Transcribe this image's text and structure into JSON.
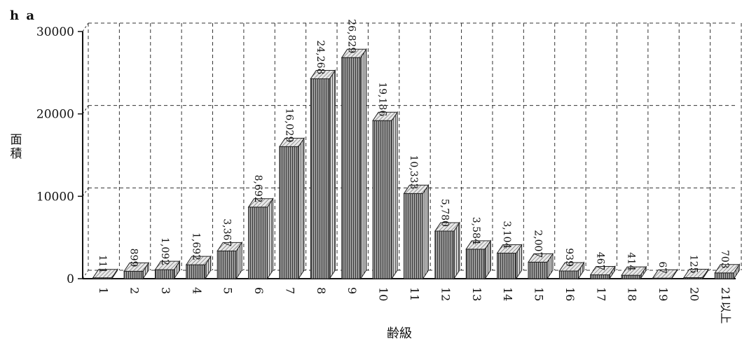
{
  "chart_data": {
    "type": "bar",
    "title": "",
    "unit": "h a",
    "ylabel": "面積",
    "xlabel": "齢級",
    "ylim": [
      0,
      30000
    ],
    "yticks": [
      0,
      10000,
      20000,
      30000
    ],
    "ytick_labels": [
      "0",
      "10000",
      "20000",
      "30000"
    ],
    "grid": true,
    "categories": [
      "1",
      "2",
      "3",
      "4",
      "5",
      "6",
      "7",
      "8",
      "9",
      "10",
      "11",
      "12",
      "13",
      "14",
      "15",
      "16",
      "17",
      "18",
      "19",
      "20",
      "21以上"
    ],
    "values": [
      111,
      899,
      1092,
      1692,
      3367,
      8692,
      16029,
      24268,
      26829,
      19186,
      10333,
      5780,
      3584,
      3104,
      2007,
      939,
      467,
      414,
      67,
      125,
      703
    ],
    "value_labels": [
      "111",
      "899",
      "1,092",
      "1,692",
      "3,367",
      "8,692",
      "16,029",
      "24,268",
      "26,829",
      "19,186",
      "10,333",
      "5,780",
      "3,584",
      "3,104",
      "2,007",
      "939",
      "467",
      "414",
      "67",
      "125",
      "703"
    ]
  }
}
